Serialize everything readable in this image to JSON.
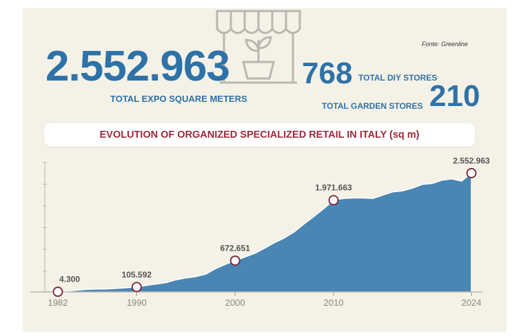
{
  "source": "Fonte: Greenline",
  "headline": {
    "total_value": "2.552.963",
    "total_label": "TOTAL EXPO SQUARE METERS",
    "diy_value": "768",
    "diy_label": "TOTAL DIY STORES",
    "garden_value": "210",
    "garden_label": "TOTAL GARDEN STORES"
  },
  "illustration": "store-plant-icon",
  "colors": {
    "accent": "#2e72a8",
    "area": "#4a86b4",
    "title": "#9c2b3a",
    "marker": "#7a1f35",
    "background": "#f4f1e6"
  },
  "chart_data": {
    "type": "area",
    "title": "EVOLUTION OF ORGANIZED SPECIALIZED RETAIL IN ITALY (sq m)",
    "xlabel": "",
    "ylabel": "",
    "xlim": [
      1982,
      2024
    ],
    "ylim": [
      0,
      2900000
    ],
    "grid": false,
    "x_ticks": [
      "1982",
      "1990",
      "2000",
      "2010",
      "2024"
    ],
    "series": [
      {
        "x": [
          1982,
          1983,
          1984,
          1985,
          1986,
          1987,
          1988,
          1989,
          1990,
          1991,
          1992,
          1993,
          1994,
          1995,
          1996,
          1997,
          1998,
          1999,
          2000,
          2001,
          2002,
          2003,
          2004,
          2005,
          2006,
          2007,
          2008,
          2009,
          2010,
          2011,
          2012,
          2013,
          2014,
          2015,
          2016,
          2017,
          2018,
          2019,
          2020,
          2021,
          2022,
          2023,
          2024
        ],
        "values": [
          4300,
          20000,
          38000,
          55000,
          60000,
          65000,
          75000,
          90000,
          105592,
          140000,
          170000,
          200000,
          260000,
          300000,
          330000,
          380000,
          500000,
          590000,
          672651,
          750000,
          830000,
          940000,
          1060000,
          1160000,
          1290000,
          1460000,
          1620000,
          1790000,
          1971663,
          2010000,
          2020000,
          2020000,
          2010000,
          2080000,
          2150000,
          2170000,
          2230000,
          2310000,
          2330000,
          2400000,
          2430000,
          2380000,
          2552963
        ]
      }
    ],
    "annotations": [
      {
        "x": 1982,
        "y": 4300,
        "label": "4.300"
      },
      {
        "x": 1990,
        "y": 105592,
        "label": "105.592"
      },
      {
        "x": 2000,
        "y": 672651,
        "label": "672.651"
      },
      {
        "x": 2010,
        "y": 1971663,
        "label": "1.971.663"
      },
      {
        "x": 2024,
        "y": 2552963,
        "label": "2.552.963"
      }
    ]
  }
}
